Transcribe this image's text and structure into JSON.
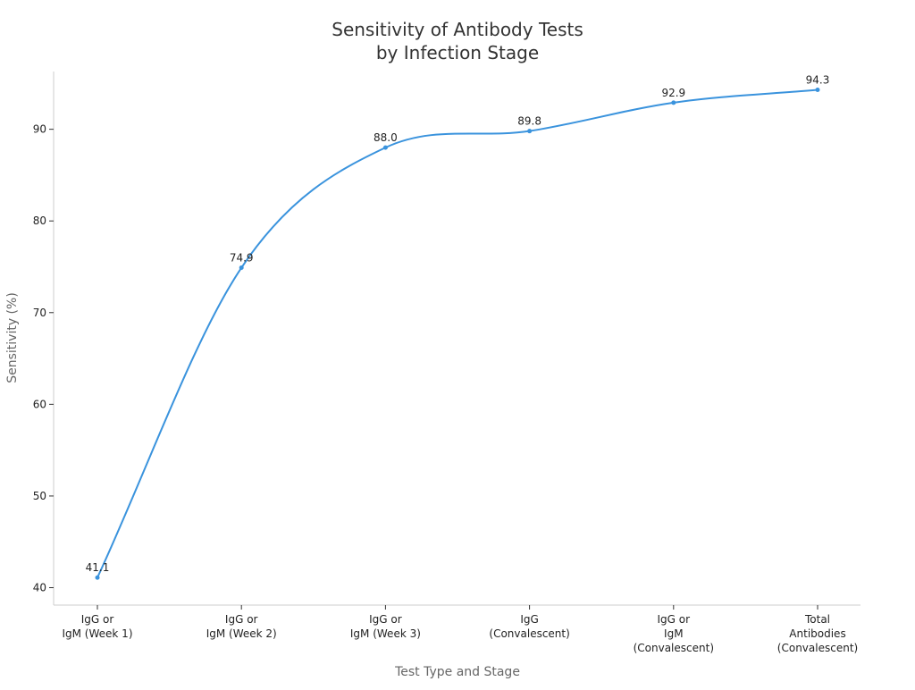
{
  "chart_data": {
    "type": "line",
    "title": "Sensitivity of Antibody Tests\nby Infection Stage",
    "xlabel": "Test Type and Stage",
    "ylabel": "Sensitivity (%)",
    "categories": [
      "IgG or\nIgM (Week 1)",
      "IgG or\nIgM (Week 2)",
      "IgG or\nIgM (Week 3)",
      "IgG\n(Convalescent)",
      "IgG or\nIgM\n(Convalescent)",
      "Total\nAntibodies\n(Convalescent)"
    ],
    "series": [
      {
        "values": [
          41.1,
          74.9,
          88.0,
          89.8,
          92.9,
          94.3
        ]
      }
    ],
    "data_labels": [
      "41.1",
      "74.9",
      "88.0",
      "89.8",
      "92.9",
      "94.3"
    ],
    "yticks": [
      40,
      50,
      60,
      70,
      80,
      90
    ],
    "ylim": [
      38.1,
      96.3
    ],
    "grid": false,
    "legend": "none",
    "line_color": "#3a93dd",
    "axis_color": "#cccccc",
    "smooth": true
  }
}
